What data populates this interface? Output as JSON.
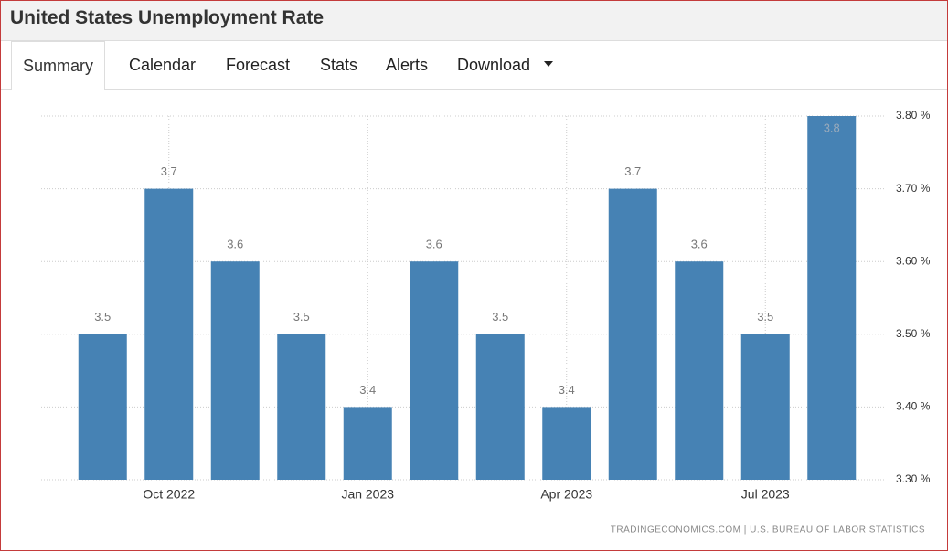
{
  "header": {
    "title": "United States Unemployment Rate"
  },
  "tabs": [
    "Summary",
    "Calendar",
    "Forecast",
    "Stats",
    "Alerts",
    "Download"
  ],
  "chart_data": {
    "type": "bar",
    "categories": [
      null,
      "Oct 2022",
      null,
      null,
      "Jan 2023",
      null,
      null,
      "Apr 2023",
      null,
      null,
      "Jul 2023",
      null
    ],
    "values": [
      3.5,
      3.7,
      3.6,
      3.5,
      3.4,
      3.6,
      3.5,
      3.4,
      3.7,
      3.6,
      3.5,
      3.8
    ],
    "color": "#4682b4",
    "ylim": [
      3.3,
      3.8
    ],
    "yticks": [
      {
        "value": 3.3,
        "label": "3.30 %"
      },
      {
        "value": 3.4,
        "label": "3.40 %"
      },
      {
        "value": 3.5,
        "label": "3.50 %"
      },
      {
        "value": 3.6,
        "label": "3.60 %"
      },
      {
        "value": 3.7,
        "label": "3.70 %"
      },
      {
        "value": 3.8,
        "label": "3.80 %"
      }
    ],
    "grid": true,
    "source": "TRADINGECONOMICS.COM | U.S. BUREAU OF LABOR STATISTICS"
  }
}
